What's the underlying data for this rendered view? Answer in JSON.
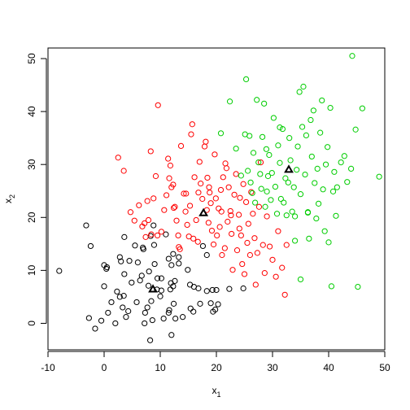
{
  "chart_data": {
    "type": "scatter",
    "title": "",
    "xlabel": "x",
    "xlabel_sub": "1",
    "ylabel": "x",
    "ylabel_sub": "2",
    "xlim": [
      -10,
      50
    ],
    "ylim": [
      -5,
      52
    ],
    "xticks": [
      -10,
      0,
      10,
      20,
      30,
      40,
      50
    ],
    "xtick_labels": [
      "-10",
      "0",
      "10",
      "20",
      "30",
      "40",
      "50"
    ],
    "yticks": [
      0,
      10,
      20,
      30,
      40,
      50
    ],
    "ytick_labels": [
      "0",
      "10",
      "20",
      "30",
      "40",
      "50"
    ],
    "grid": false,
    "legend": "none",
    "series": [
      {
        "color": "#000000",
        "marker": "circle",
        "points": [
          [
            -8,
            9.9
          ],
          [
            -3.2,
            18.5
          ],
          [
            -2.4,
            14.6
          ],
          [
            -2.7,
            1.0
          ],
          [
            -1.6,
            -1.0
          ],
          [
            -0.5,
            0.5
          ],
          [
            0.0,
            7.0
          ],
          [
            0.0,
            11.0
          ],
          [
            0.4,
            10.3
          ],
          [
            0.7,
            2.0
          ],
          [
            1.3,
            4.0
          ],
          [
            2.0,
            0.0
          ],
          [
            2.3,
            6.0
          ],
          [
            2.8,
            5.0
          ],
          [
            2.8,
            12.5
          ],
          [
            3.0,
            11.7
          ],
          [
            3.3,
            3.0
          ],
          [
            3.6,
            16.3
          ],
          [
            3.6,
            9.3
          ],
          [
            3.9,
            1.2
          ],
          [
            4.3,
            2.3
          ],
          [
            4.5,
            11.8
          ],
          [
            4.9,
            7.7
          ],
          [
            5.5,
            14.7
          ],
          [
            5.8,
            4.0
          ],
          [
            6.0,
            11.5
          ],
          [
            6.4,
            8.1
          ],
          [
            6.7,
            9.0
          ],
          [
            6.9,
            14.3
          ],
          [
            7.0,
            14.0
          ],
          [
            7.2,
            0.0
          ],
          [
            7.3,
            2.0
          ],
          [
            7.7,
            3.0
          ],
          [
            7.9,
            7.1
          ],
          [
            8.0,
            9.8
          ],
          [
            8.2,
            -3.2
          ],
          [
            8.4,
            4.2
          ],
          [
            8.6,
            0.6
          ],
          [
            8.8,
            18.5
          ],
          [
            8.9,
            14.8
          ],
          [
            9.0,
            11.2
          ],
          [
            9.5,
            8.5
          ],
          [
            9.4,
            6.4
          ],
          [
            10.0,
            5.1
          ],
          [
            10.2,
            6.2
          ],
          [
            10.2,
            8.5
          ],
          [
            10.6,
            0.9
          ],
          [
            11.0,
            16.8
          ],
          [
            11.5,
            2.0
          ],
          [
            11.5,
            12.2
          ],
          [
            11.6,
            2.5
          ],
          [
            11.8,
            6.4
          ],
          [
            11.9,
            7.6
          ],
          [
            12.0,
            11.0
          ],
          [
            12.0,
            -2.2
          ],
          [
            12.3,
            13.1
          ],
          [
            12.3,
            7.0
          ],
          [
            12.4,
            3.7
          ],
          [
            12.6,
            8.0
          ],
          [
            12.7,
            0.9
          ],
          [
            13.3,
            12.5
          ],
          [
            13.3,
            11.3
          ],
          [
            14.0,
            1.2
          ],
          [
            14.9,
            10.1
          ],
          [
            15.3,
            7.3
          ],
          [
            15.4,
            2.8
          ],
          [
            15.9,
            2.2
          ],
          [
            16.0,
            6.9
          ],
          [
            16.8,
            6.6
          ],
          [
            17.1,
            3.7
          ],
          [
            17.6,
            14.6
          ],
          [
            18.3,
            6.1
          ],
          [
            19.0,
            3.8
          ],
          [
            19.3,
            6.3
          ],
          [
            19.4,
            2.2
          ],
          [
            19.8,
            2.6
          ],
          [
            20.0,
            6.3
          ],
          [
            20.3,
            3.6
          ],
          [
            22.3,
            6.5
          ],
          [
            24.8,
            6.6
          ],
          [
            18.3,
            12.9
          ],
          [
            8.3,
            16.5
          ],
          [
            0.5,
            10.6
          ],
          [
            3.5,
            5.2
          ]
        ]
      },
      {
        "color": "#ff0000",
        "marker": "circle",
        "points": [
          [
            2.5,
            31.3
          ],
          [
            3.5,
            28.8
          ],
          [
            4.7,
            21.0
          ],
          [
            5.4,
            19.4
          ],
          [
            6.2,
            22.3
          ],
          [
            6.8,
            18.3
          ],
          [
            7.2,
            18.9
          ],
          [
            7.4,
            16.3
          ],
          [
            7.7,
            23.1
          ],
          [
            7.9,
            19.5
          ],
          [
            8.3,
            32.5
          ],
          [
            8.4,
            16.8
          ],
          [
            8.8,
            23.6
          ],
          [
            9.2,
            27.8
          ],
          [
            9.6,
            41.2
          ],
          [
            9.5,
            16.6
          ],
          [
            10.2,
            17.3
          ],
          [
            10.7,
            21.4
          ],
          [
            11.1,
            24.2
          ],
          [
            11.4,
            31.1
          ],
          [
            11.6,
            27.4
          ],
          [
            11.8,
            29.8
          ],
          [
            12.0,
            25.7
          ],
          [
            12.3,
            26.2
          ],
          [
            12.4,
            21.8
          ],
          [
            12.6,
            22.0
          ],
          [
            12.9,
            19.4
          ],
          [
            13.2,
            16.6
          ],
          [
            13.5,
            14.0
          ],
          [
            13.7,
            33.5
          ],
          [
            14.2,
            24.5
          ],
          [
            14.5,
            21.1
          ],
          [
            14.6,
            24.5
          ],
          [
            14.8,
            18.6
          ],
          [
            15.1,
            16.4
          ],
          [
            15.3,
            22.2
          ],
          [
            15.5,
            35.7
          ],
          [
            15.7,
            37.6
          ],
          [
            15.9,
            16.0
          ],
          [
            16.1,
            27.6
          ],
          [
            16.4,
            19.5
          ],
          [
            16.7,
            15.4
          ],
          [
            17.0,
            30.5
          ],
          [
            17.2,
            26.4
          ],
          [
            17.5,
            23.5
          ],
          [
            17.9,
            33.4
          ],
          [
            18.1,
            34.3
          ],
          [
            18.3,
            21.4
          ],
          [
            18.4,
            27.5
          ],
          [
            18.6,
            19.0
          ],
          [
            18.8,
            24.7
          ],
          [
            19.0,
            22.7
          ],
          [
            19.2,
            17.5
          ],
          [
            19.5,
            14.9
          ],
          [
            19.7,
            31.9
          ],
          [
            19.9,
            23.6
          ],
          [
            20.1,
            16.6
          ],
          [
            20.4,
            21.7
          ],
          [
            20.6,
            18.2
          ],
          [
            20.8,
            25.2
          ],
          [
            21.0,
            12.9
          ],
          [
            21.2,
            27.6
          ],
          [
            21.5,
            14.2
          ],
          [
            21.6,
            30.2
          ],
          [
            21.8,
            29.3
          ],
          [
            22.0,
            19.2
          ],
          [
            22.2,
            25.7
          ],
          [
            22.5,
            21.2
          ],
          [
            22.7,
            16.9
          ],
          [
            22.9,
            10.1
          ],
          [
            23.2,
            24.3
          ],
          [
            23.5,
            28.2
          ],
          [
            23.7,
            13.8
          ],
          [
            24.0,
            20.5
          ],
          [
            24.2,
            23.7
          ],
          [
            24.4,
            16.6
          ],
          [
            24.6,
            11.2
          ],
          [
            24.8,
            26.3
          ],
          [
            25.0,
            9.3
          ],
          [
            25.3,
            22.9
          ],
          [
            25.5,
            15.2
          ],
          [
            25.7,
            18.8
          ],
          [
            26.0,
            12.9
          ],
          [
            26.2,
            24.8
          ],
          [
            26.5,
            20.7
          ],
          [
            26.8,
            16.1
          ],
          [
            27.0,
            7.3
          ],
          [
            27.3,
            13.3
          ],
          [
            27.6,
            22.0
          ],
          [
            27.9,
            30.4
          ],
          [
            28.3,
            14.8
          ],
          [
            28.6,
            9.5
          ],
          [
            29.0,
            20.2
          ],
          [
            29.5,
            14.5
          ],
          [
            30.0,
            12.0
          ],
          [
            30.6,
            8.8
          ],
          [
            31.0,
            17.4
          ],
          [
            31.7,
            10.5
          ],
          [
            32.2,
            5.4
          ],
          [
            32.5,
            14.8
          ],
          [
            18.7,
            25.7
          ],
          [
            13.3,
            14.4
          ],
          [
            16.8,
            24.7
          ],
          [
            20.9,
            21.1
          ],
          [
            22.6,
            20.4
          ],
          [
            24.1,
            17.9
          ]
        ]
      },
      {
        "color": "#00cd00",
        "marker": "circle",
        "points": [
          [
            20.8,
            35.9
          ],
          [
            22.4,
            41.9
          ],
          [
            23.5,
            33.0
          ],
          [
            24.4,
            27.9
          ],
          [
            25.1,
            35.7
          ],
          [
            25.3,
            46.1
          ],
          [
            25.6,
            28.8
          ],
          [
            25.9,
            35.4
          ],
          [
            26.1,
            26.6
          ],
          [
            26.4,
            24.6
          ],
          [
            26.6,
            32.2
          ],
          [
            26.9,
            22.8
          ],
          [
            27.2,
            42.2
          ],
          [
            27.5,
            30.4
          ],
          [
            27.8,
            28.2
          ],
          [
            28.0,
            25.4
          ],
          [
            28.2,
            35.2
          ],
          [
            28.5,
            41.5
          ],
          [
            28.7,
            22.0
          ],
          [
            28.9,
            32.9
          ],
          [
            29.2,
            27.8
          ],
          [
            29.4,
            31.8
          ],
          [
            29.7,
            23.3
          ],
          [
            29.9,
            28.4
          ],
          [
            30.2,
            38.8
          ],
          [
            30.5,
            25.8
          ],
          [
            30.8,
            20.7
          ],
          [
            31.0,
            33.6
          ],
          [
            31.3,
            30.3
          ],
          [
            31.5,
            23.5
          ],
          [
            31.8,
            36.7
          ],
          [
            32.0,
            22.8
          ],
          [
            32.3,
            27.4
          ],
          [
            32.5,
            20.4
          ],
          [
            32.8,
            26.6
          ],
          [
            33.0,
            35.0
          ],
          [
            33.2,
            30.8
          ],
          [
            33.5,
            21.1
          ],
          [
            33.8,
            25.7
          ],
          [
            34.0,
            15.6
          ],
          [
            34.3,
            29.0
          ],
          [
            34.5,
            33.4
          ],
          [
            34.8,
            43.7
          ],
          [
            35.0,
            24.4
          ],
          [
            35.3,
            37.1
          ],
          [
            35.5,
            44.7
          ],
          [
            35.8,
            28.1
          ],
          [
            36.0,
            35.5
          ],
          [
            36.3,
            20.9
          ],
          [
            36.5,
            16.0
          ],
          [
            36.8,
            38.4
          ],
          [
            37.0,
            31.5
          ],
          [
            37.3,
            40.2
          ],
          [
            37.5,
            26.5
          ],
          [
            37.8,
            19.8
          ],
          [
            38.0,
            29.2
          ],
          [
            38.2,
            22.6
          ],
          [
            38.5,
            36.0
          ],
          [
            38.8,
            42.1
          ],
          [
            39.0,
            25.3
          ],
          [
            39.3,
            17.4
          ],
          [
            39.5,
            30.0
          ],
          [
            39.8,
            33.3
          ],
          [
            40.0,
            15.3
          ],
          [
            40.3,
            40.7
          ],
          [
            40.5,
            7.0
          ],
          [
            40.8,
            24.9
          ],
          [
            41.0,
            28.6
          ],
          [
            41.3,
            20.3
          ],
          [
            41.5,
            25.7
          ],
          [
            42.2,
            30.4
          ],
          [
            42.8,
            31.6
          ],
          [
            43.3,
            26.7
          ],
          [
            44.0,
            29.2
          ],
          [
            44.2,
            50.5
          ],
          [
            44.8,
            36.6
          ],
          [
            45.2,
            6.9
          ],
          [
            46.0,
            40.6
          ],
          [
            49.0,
            27.7
          ],
          [
            35.0,
            8.3
          ],
          [
            34.0,
            20.2
          ],
          [
            36.3,
            21.0
          ],
          [
            29.0,
            24.9
          ],
          [
            31.3,
            37.0
          ]
        ]
      }
    ],
    "centroids": {
      "marker": "triangle",
      "color": "#000000",
      "points": [
        [
          8.7,
          6.4
        ],
        [
          17.7,
          20.8
        ],
        [
          32.9,
          29.0
        ]
      ]
    }
  }
}
